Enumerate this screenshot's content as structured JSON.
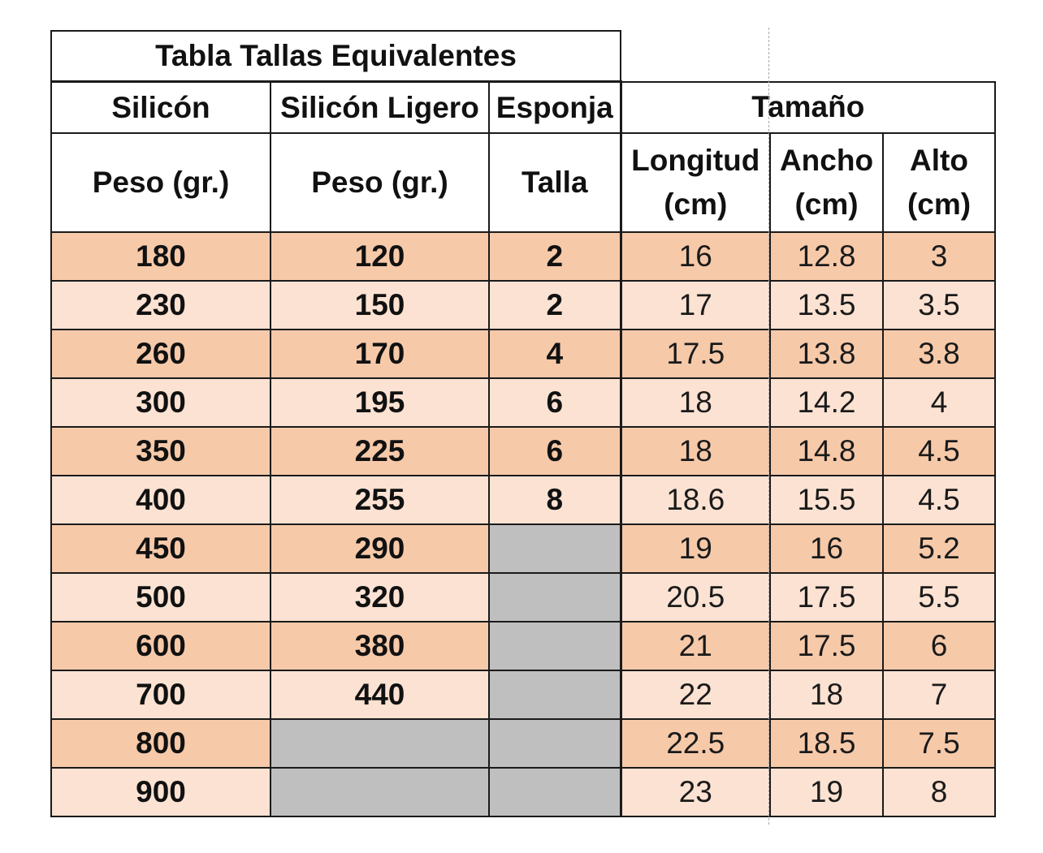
{
  "title": "Tabla Tallas Equivalentes",
  "headers": {
    "silicon": "Silicón",
    "silicon_ligero": "Silicón Ligero",
    "esponja": "Esponja",
    "tamano": "Tamaño"
  },
  "subheaders": {
    "peso_silicon": "Peso (gr.)",
    "peso_ligero": "Peso (gr.)",
    "talla": "Talla",
    "longitud": "Longitud",
    "longitud_unit": "(cm)",
    "ancho": "Ancho",
    "ancho_unit": "(cm)",
    "alto": "Alto",
    "alto_unit": "(cm)"
  },
  "rows": [
    {
      "silicon": "180",
      "ligero": "120",
      "talla": "2",
      "longitud": "16",
      "ancho": "12.8",
      "alto": "3"
    },
    {
      "silicon": "230",
      "ligero": "150",
      "talla": "2",
      "longitud": "17",
      "ancho": "13.5",
      "alto": "3.5"
    },
    {
      "silicon": "260",
      "ligero": "170",
      "talla": "4",
      "longitud": "17.5",
      "ancho": "13.8",
      "alto": "3.8"
    },
    {
      "silicon": "300",
      "ligero": "195",
      "talla": "6",
      "longitud": "18",
      "ancho": "14.2",
      "alto": "4"
    },
    {
      "silicon": "350",
      "ligero": "225",
      "talla": "6",
      "longitud": "18",
      "ancho": "14.8",
      "alto": "4.5"
    },
    {
      "silicon": "400",
      "ligero": "255",
      "talla": "8",
      "longitud": "18.6",
      "ancho": "15.5",
      "alto": "4.5"
    },
    {
      "silicon": "450",
      "ligero": "290",
      "talla": "",
      "longitud": "19",
      "ancho": "16",
      "alto": "5.2"
    },
    {
      "silicon": "500",
      "ligero": "320",
      "talla": "",
      "longitud": "20.5",
      "ancho": "17.5",
      "alto": "5.5"
    },
    {
      "silicon": "600",
      "ligero": "380",
      "talla": "",
      "longitud": "21",
      "ancho": "17.5",
      "alto": "6"
    },
    {
      "silicon": "700",
      "ligero": "440",
      "talla": "",
      "longitud": "22",
      "ancho": "18",
      "alto": "7"
    },
    {
      "silicon": "800",
      "ligero": "",
      "talla": "",
      "longitud": "22.5",
      "ancho": "18.5",
      "alto": "7.5"
    },
    {
      "silicon": "900",
      "ligero": "",
      "talla": "",
      "longitud": "23",
      "ancho": "19",
      "alto": "8"
    }
  ],
  "colors": {
    "row_dark": "#f6c9a9",
    "row_light": "#fbe2d2",
    "empty_cell": "#bfbfbf",
    "border": "#1a1a1a"
  }
}
